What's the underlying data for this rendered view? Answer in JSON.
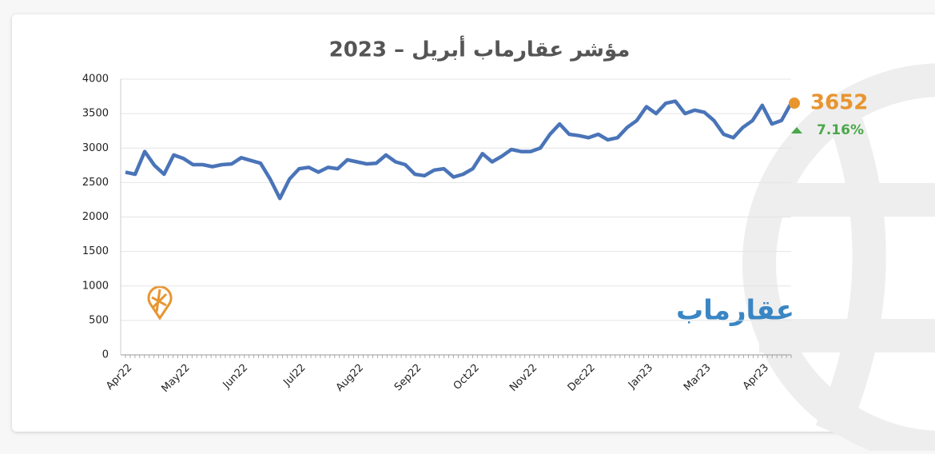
{
  "chart_data": {
    "type": "line",
    "title": "مؤشر عقارماب أبريل – 2023",
    "categories": [
      "Apr22",
      null,
      null,
      null,
      null,
      null,
      "May22",
      null,
      null,
      null,
      null,
      null,
      "Jun22",
      null,
      null,
      null,
      null,
      null,
      "Jul22",
      null,
      null,
      null,
      null,
      null,
      "Aug22",
      null,
      null,
      null,
      null,
      null,
      "Sep22",
      null,
      null,
      null,
      null,
      null,
      "Oct22",
      null,
      null,
      null,
      null,
      null,
      "Nov22",
      null,
      null,
      null,
      null,
      null,
      "Dec22",
      null,
      null,
      null,
      null,
      null,
      "Jan23",
      null,
      null,
      null,
      null,
      null,
      "Mar23",
      null,
      null,
      null,
      null,
      null,
      "Apr23",
      null,
      null,
      null
    ],
    "values": [
      2650,
      2620,
      2950,
      2750,
      2620,
      2900,
      2850,
      2760,
      2760,
      2730,
      2760,
      2770,
      2860,
      2820,
      2780,
      2550,
      2270,
      2550,
      2700,
      2720,
      2650,
      2720,
      2700,
      2830,
      2800,
      2770,
      2780,
      2900,
      2800,
      2760,
      2620,
      2600,
      2680,
      2700,
      2580,
      2620,
      2700,
      2920,
      2800,
      2880,
      2980,
      2950,
      2950,
      3000,
      3200,
      3350,
      3200,
      3180,
      3150,
      3200,
      3120,
      3150,
      3300,
      3400,
      3600,
      3500,
      3650,
      3680,
      3500,
      3550,
      3520,
      3400,
      3200,
      3150,
      3300,
      3400,
      3620,
      3350,
      3400,
      3652
    ],
    "color": "#4a74b8",
    "ylim": [
      0,
      4000
    ],
    "yticks": [
      0,
      500,
      1000,
      1500,
      2000,
      2500,
      3000,
      3500,
      4000
    ],
    "grid": true,
    "annotations": [
      "7.16%"
    ],
    "brand": "عقارماب"
  }
}
